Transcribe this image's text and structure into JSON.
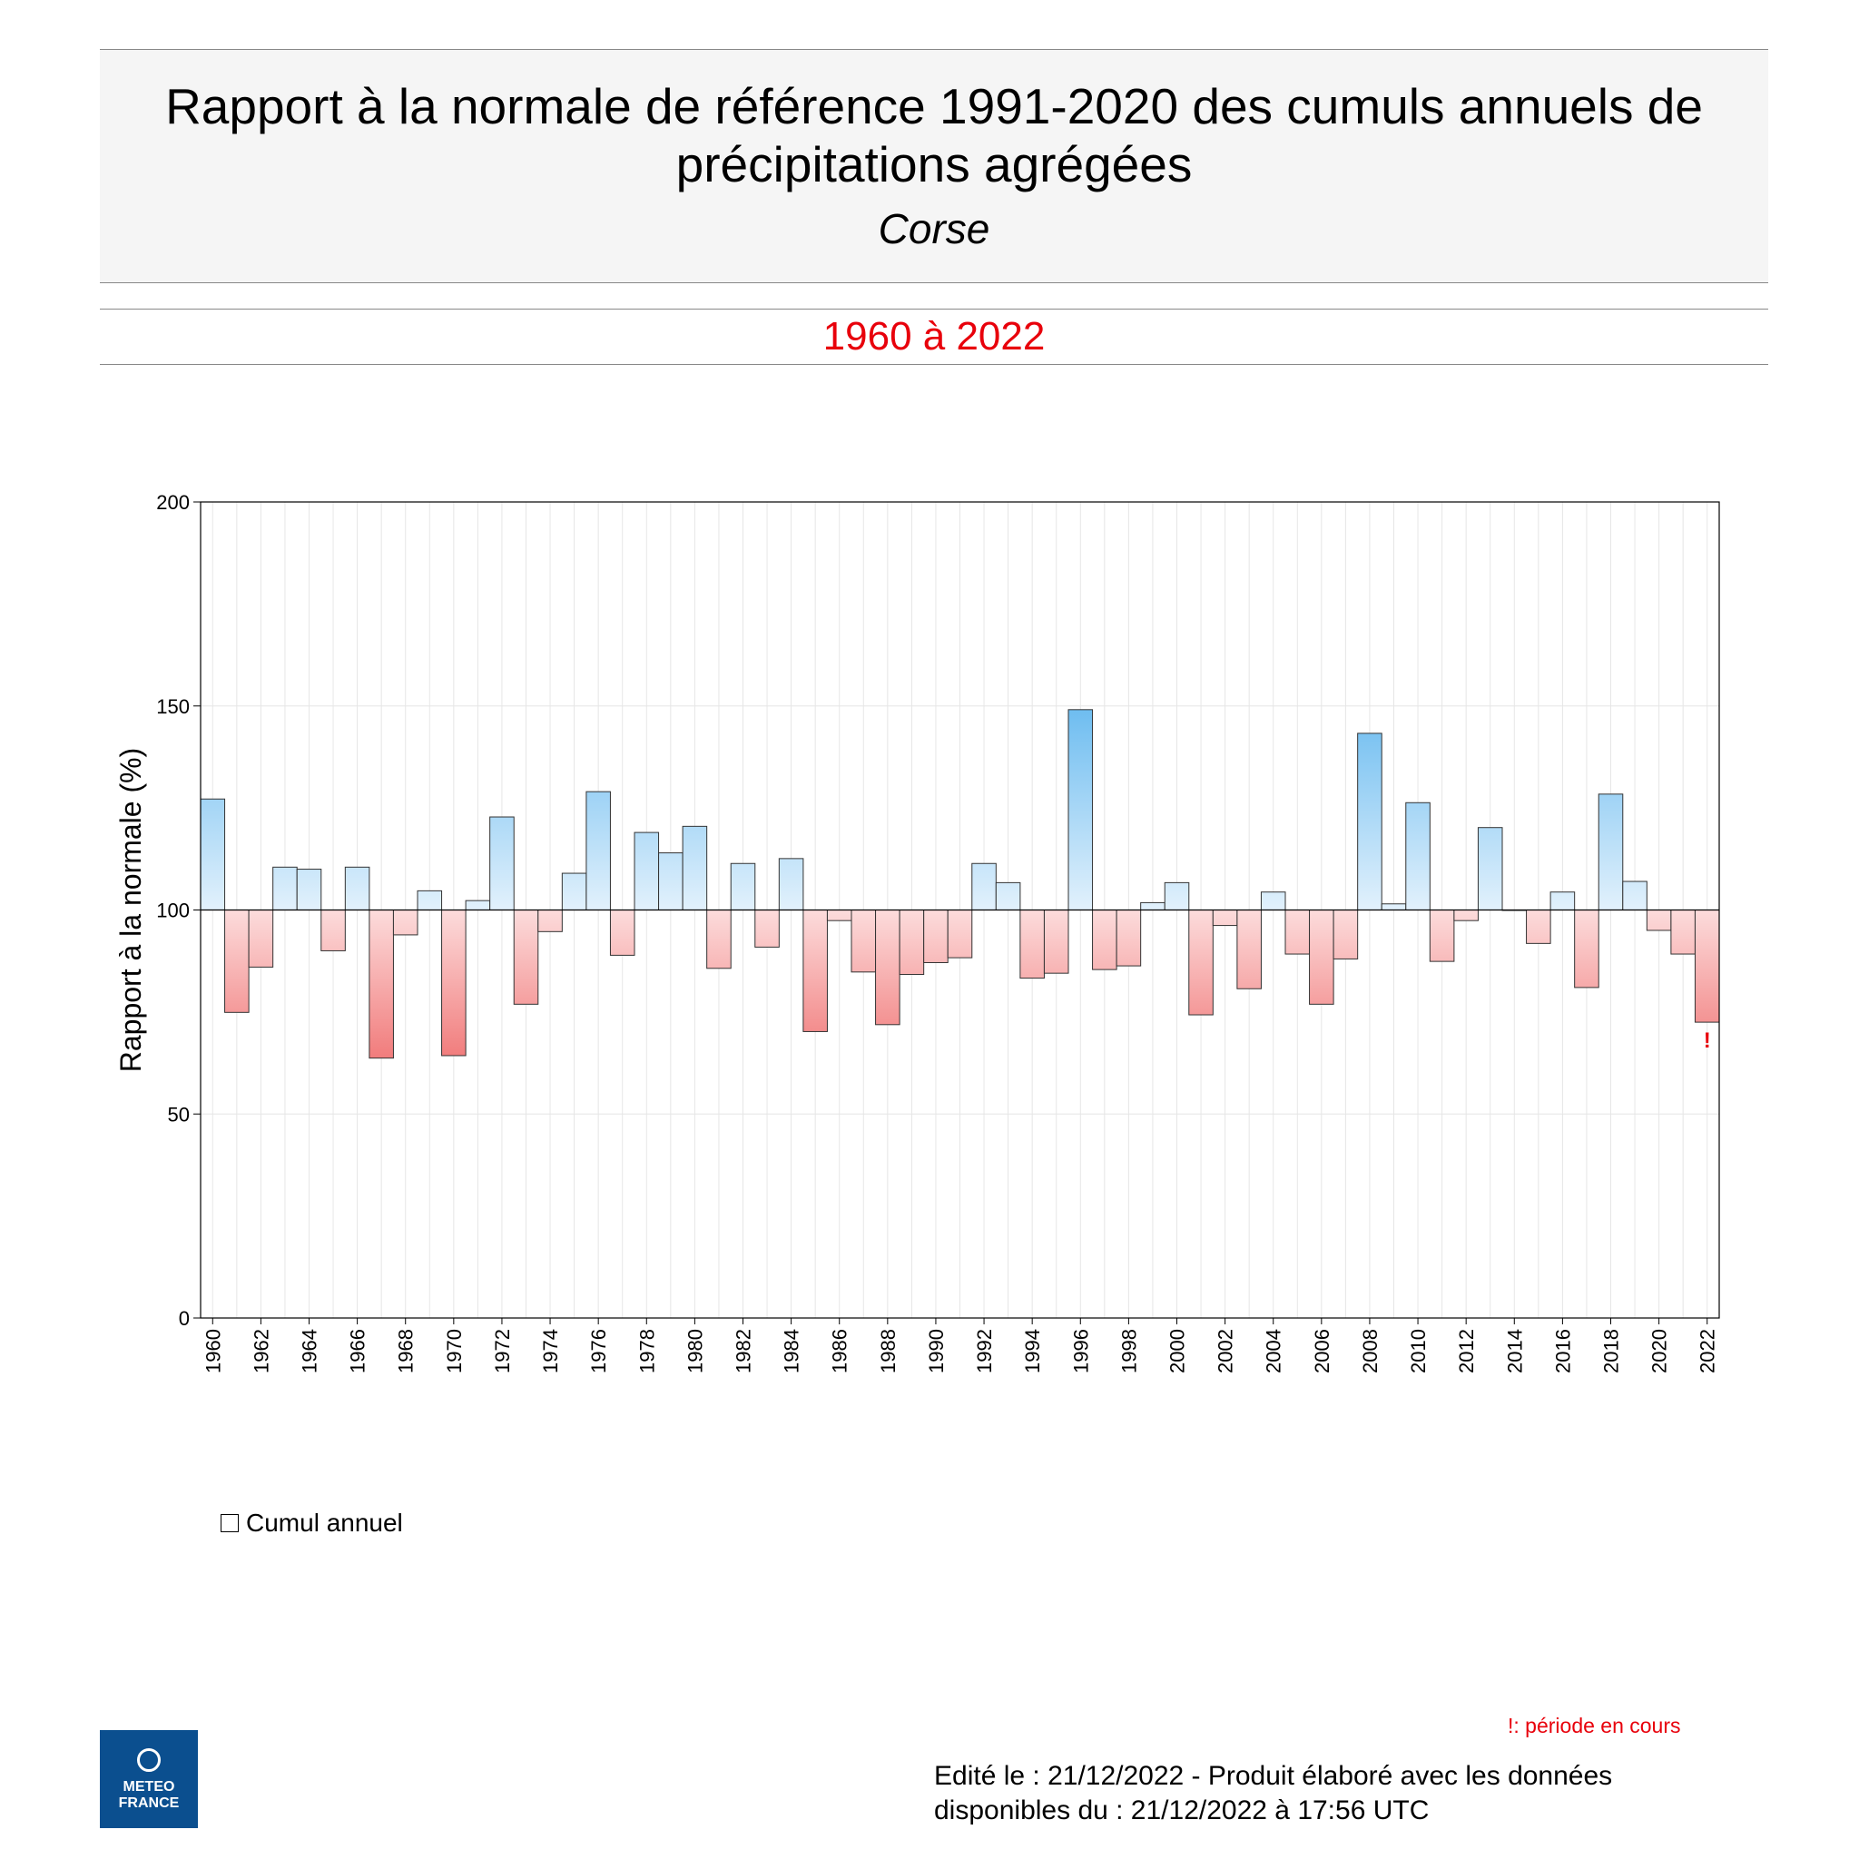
{
  "header": {
    "title": "Rapport à la normale de référence 1991-2020 des cumuls annuels de précipitations agrégées",
    "region": "Corse"
  },
  "period": "1960 à 2022",
  "legend": {
    "label": "Cumul annuel"
  },
  "note": "!: période en cours",
  "footer": {
    "line1": "Edité le : 21/12/2022 - Produit élaboré avec les données",
    "line2": "disponibles du : 21/12/2022 à 17:56 UTC"
  },
  "logo": {
    "text": "METEO FRANCE"
  },
  "colors": {
    "above": "#6cbcf0",
    "above_light": "#e2f1fc",
    "below": "#f07272",
    "below_light": "#fcdcdc",
    "accent": "#e8000b"
  },
  "chart_data": {
    "type": "bar",
    "ylabel": "Rapport à la normale (%)",
    "xlabel": "",
    "baseline": 100,
    "ylim": [
      0,
      200
    ],
    "yticks": [
      0,
      50,
      100,
      150,
      200
    ],
    "grid": true,
    "x": [
      1960,
      1961,
      1962,
      1963,
      1964,
      1965,
      1966,
      1967,
      1968,
      1969,
      1970,
      1971,
      1972,
      1973,
      1974,
      1975,
      1976,
      1977,
      1978,
      1979,
      1980,
      1981,
      1982,
      1983,
      1984,
      1985,
      1986,
      1987,
      1988,
      1989,
      1990,
      1991,
      1992,
      1993,
      1994,
      1995,
      1996,
      1997,
      1998,
      1999,
      2000,
      2001,
      2002,
      2003,
      2004,
      2005,
      2006,
      2007,
      2008,
      2009,
      2010,
      2011,
      2012,
      2013,
      2014,
      2015,
      2016,
      2017,
      2018,
      2019,
      2020,
      2021,
      2022
    ],
    "values": [
      127.2,
      74.9,
      86,
      110.5,
      110,
      90,
      110.5,
      63.7,
      93.9,
      104.7,
      64.3,
      102.3,
      122.8,
      76.9,
      94.7,
      109,
      129,
      88.9,
      119,
      114,
      120.5,
      85.7,
      111.4,
      90.9,
      112.6,
      70.2,
      97.4,
      84.8,
      71.9,
      84.2,
      87.1,
      88.3,
      111.4,
      106.7,
      83.3,
      84.5,
      149.1,
      85.4,
      86.3,
      101.8,
      106.7,
      74.3,
      96.2,
      80.7,
      104.4,
      89.2,
      76.9,
      88,
      143.3,
      101.5,
      126.3,
      87.4,
      97.4,
      120.2,
      100,
      91.8,
      104.4,
      81,
      128.4,
      107,
      95,
      89.2,
      72.5
    ],
    "annotations": [
      {
        "x": 2022,
        "text": "!"
      }
    ]
  }
}
